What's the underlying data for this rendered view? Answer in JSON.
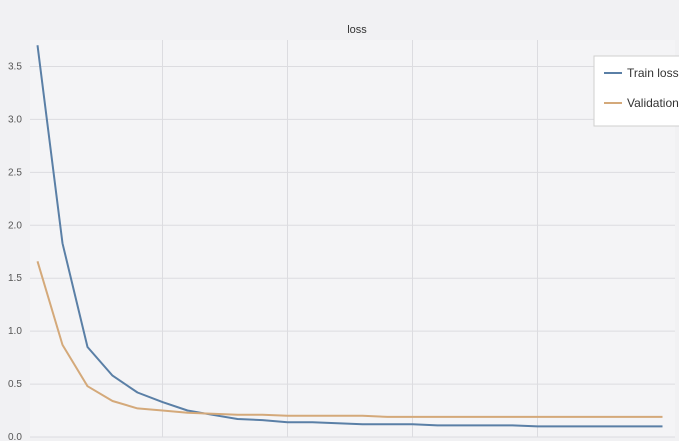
{
  "chart_data": {
    "type": "line",
    "title": "loss",
    "xlabel": "",
    "ylabel": "",
    "x": [
      0,
      1,
      2,
      3,
      4,
      5,
      6,
      7,
      8,
      9,
      10,
      11,
      12,
      13,
      14,
      15,
      16,
      17,
      18,
      19,
      20,
      21,
      22,
      23,
      24,
      25
    ],
    "xlim": [
      -0.3,
      25.5
    ],
    "ylim": [
      0,
      3.75
    ],
    "yticks": [
      "0.0",
      "0.5",
      "1.0",
      "1.5",
      "2.0",
      "2.5",
      "3.0",
      "3.5"
    ],
    "ytick_values": [
      0,
      0.5,
      1.0,
      1.5,
      2.0,
      2.5,
      3.0,
      3.5
    ],
    "xgrid_values": [
      5,
      10,
      15,
      20
    ],
    "grid": true,
    "legend_position": "top-right",
    "series": [
      {
        "name": "Train loss",
        "color": "#5a7fa6",
        "values": [
          3.7,
          1.83,
          0.85,
          0.58,
          0.42,
          0.33,
          0.25,
          0.21,
          0.17,
          0.16,
          0.14,
          0.14,
          0.13,
          0.12,
          0.12,
          0.12,
          0.11,
          0.11,
          0.11,
          0.11,
          0.1,
          0.1,
          0.1,
          0.1,
          0.1,
          0.1
        ]
      },
      {
        "name": "Validation loss",
        "color": "#d4a97a",
        "values": [
          1.66,
          0.87,
          0.48,
          0.34,
          0.27,
          0.25,
          0.23,
          0.22,
          0.21,
          0.21,
          0.2,
          0.2,
          0.2,
          0.2,
          0.19,
          0.19,
          0.19,
          0.19,
          0.19,
          0.19,
          0.19,
          0.19,
          0.19,
          0.19,
          0.19,
          0.19
        ]
      }
    ]
  }
}
